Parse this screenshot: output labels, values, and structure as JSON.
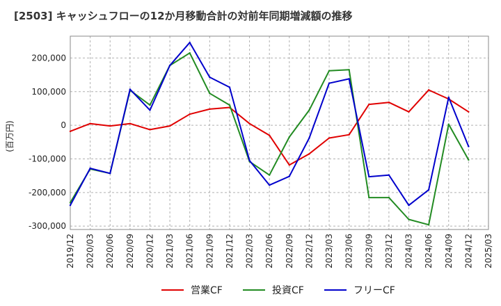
{
  "chart_data": {
    "type": "line",
    "title": "[2503] キャッシュフローの12か月移動合計の対前年同期増減額の推移",
    "xlabel": "",
    "ylabel": "(百万円)",
    "ylim": [
      -310000,
      265000
    ],
    "yticks": [
      -300000,
      -200000,
      -100000,
      0,
      100000,
      200000
    ],
    "ytick_labels": [
      "-300,000",
      "-200,000",
      "-100,000",
      "0",
      "100,000",
      "200,000"
    ],
    "x_tick_labels": [
      "2019/12",
      "2020/03",
      "2020/06",
      "2020/09",
      "2020/12",
      "2021/03",
      "2021/06",
      "2021/09",
      "2021/12",
      "2022/03",
      "2022/06",
      "2022/09",
      "2022/12",
      "2023/03",
      "2023/06",
      "2023/09",
      "2023/12",
      "2024/03",
      "2024/06",
      "2024/09",
      "2024/12",
      "2025/03"
    ],
    "categories": [
      "2019/12",
      "2020/03",
      "2020/06",
      "2020/09",
      "2020/12",
      "2021/03",
      "2021/06",
      "2021/09",
      "2021/12",
      "2022/03",
      "2022/06",
      "2022/09",
      "2022/12",
      "2023/03",
      "2023/06",
      "2023/09",
      "2023/12",
      "2024/03",
      "2024/06",
      "2024/09",
      "2024/12"
    ],
    "grid": true,
    "legend_position": "bottom-center",
    "series": [
      {
        "name": "営業CF",
        "color": "#e00000",
        "values": [
          -18000,
          5000,
          -2000,
          5000,
          -13000,
          -2000,
          33000,
          48000,
          53000,
          5000,
          -30000,
          -118000,
          -85000,
          -38000,
          -28000,
          62000,
          68000,
          40000,
          105000,
          78000,
          40000
        ]
      },
      {
        "name": "投資CF",
        "color": "#228b22",
        "values": [
          -230000,
          -130000,
          -143000,
          104000,
          60000,
          178000,
          215000,
          95000,
          60000,
          -108000,
          -148000,
          -35000,
          45000,
          162000,
          165000,
          -215000,
          -215000,
          -280000,
          -296000,
          3000,
          -103000
        ]
      },
      {
        "name": "フリーCF",
        "color": "#0000cc",
        "values": [
          -238000,
          -128000,
          -143000,
          107000,
          45000,
          178000,
          246000,
          143000,
          113000,
          -105000,
          -178000,
          -152000,
          -38000,
          125000,
          138000,
          -153000,
          -148000,
          -238000,
          -192000,
          83000,
          -63000
        ]
      }
    ]
  }
}
